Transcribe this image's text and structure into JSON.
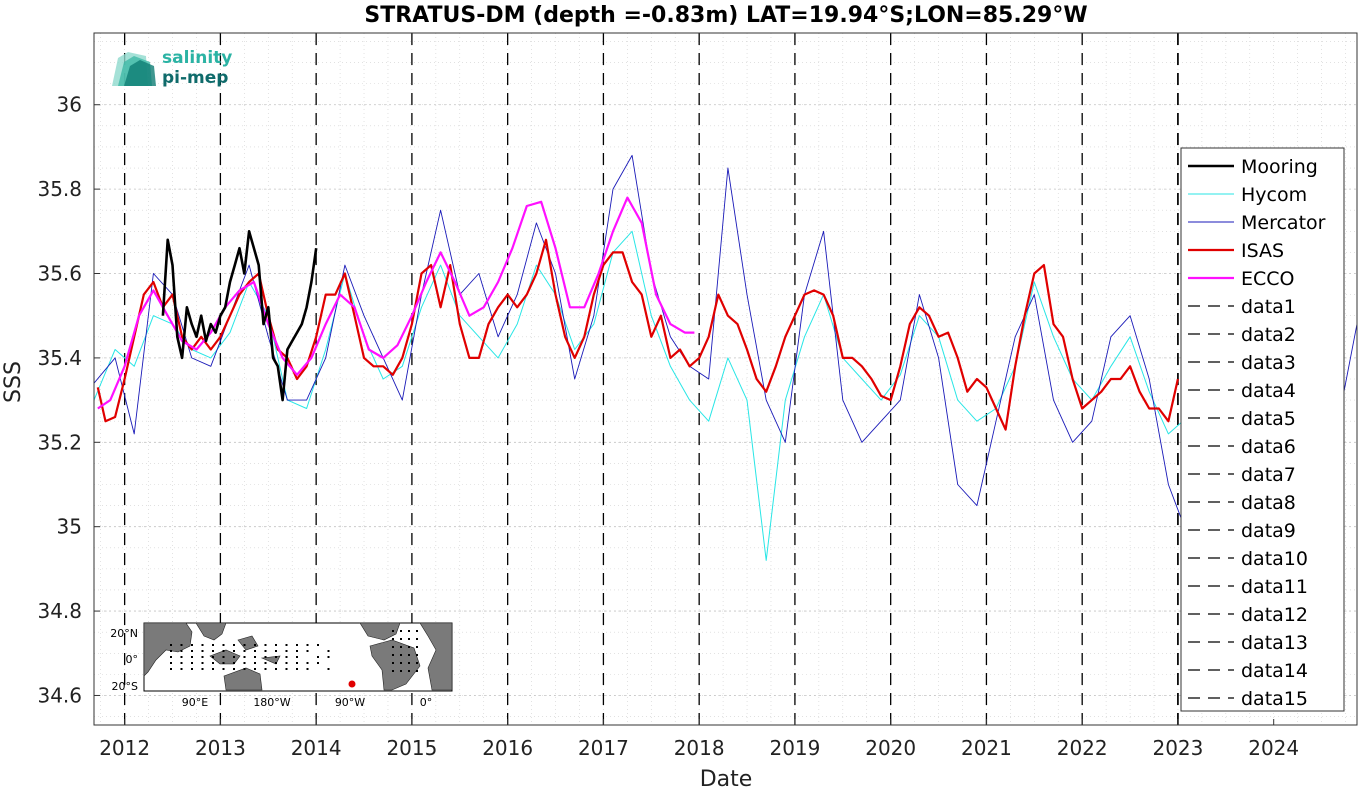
{
  "chart_data": {
    "type": "line",
    "title": "STRATUS-DM (depth =-0.83m) LAT=19.94°S;LON=85.29°W",
    "xlabel": "Date",
    "ylabel": "SSS",
    "xlim": [
      2011.68,
      2024.87
    ],
    "ylim": [
      34.53,
      36.17
    ],
    "x_ticks": [
      "2012",
      "2013",
      "2014",
      "2015",
      "2016",
      "2017",
      "2018",
      "2019",
      "2020",
      "2021",
      "2022",
      "2023",
      "2024"
    ],
    "y_ticks": [
      "34.6",
      "34.8",
      "35",
      "35.2",
      "35.4",
      "35.6",
      "35.8",
      "36"
    ],
    "grid": true,
    "legend_position": "right",
    "series": [
      {
        "name": "Mooring",
        "color": "#000000",
        "x": [
          2012.4,
          2012.45,
          2012.5,
          2012.55,
          2012.6,
          2012.65,
          2012.7,
          2012.75,
          2012.8,
          2012.85,
          2012.9,
          2012.95,
          2013.0,
          2013.05,
          2013.1,
          2013.15,
          2013.2,
          2013.25,
          2013.3,
          2013.35,
          2013.4,
          2013.45,
          2013.5,
          2013.55,
          2013.6,
          2013.65,
          2013.7,
          2013.75,
          2013.8,
          2013.85,
          2013.9,
          2013.95,
          2014.0
        ],
        "y": [
          35.5,
          35.68,
          35.62,
          35.45,
          35.4,
          35.52,
          35.48,
          35.45,
          35.5,
          35.44,
          35.48,
          35.46,
          35.5,
          35.52,
          35.58,
          35.62,
          35.66,
          35.6,
          35.7,
          35.66,
          35.62,
          35.48,
          35.52,
          35.4,
          35.38,
          35.3,
          35.42,
          35.44,
          35.46,
          35.48,
          35.52,
          35.58,
          35.66
        ]
      },
      {
        "name": "Hycom",
        "color": "#28e6e6",
        "x": [
          2011.68,
          2011.9,
          2012.1,
          2012.3,
          2012.5,
          2012.7,
          2012.9,
          2013.1,
          2013.3,
          2013.5,
          2013.7,
          2013.9,
          2014.1,
          2014.3,
          2014.5,
          2014.7,
          2014.9,
          2015.1,
          2015.3,
          2015.5,
          2015.7,
          2015.9,
          2016.1,
          2016.3,
          2016.5,
          2016.7,
          2016.9,
          2017.1,
          2017.3,
          2017.5,
          2017.7,
          2017.9,
          2018.1,
          2018.3,
          2018.5,
          2018.7,
          2018.9,
          2019.1,
          2019.3,
          2019.5,
          2019.7,
          2019.9,
          2020.1,
          2020.3,
          2020.5,
          2020.7,
          2020.9,
          2021.1,
          2021.3,
          2021.5,
          2021.7,
          2021.9,
          2022.1,
          2022.3,
          2022.5,
          2022.7,
          2022.9,
          2023.05
        ],
        "y": [
          35.3,
          35.42,
          35.38,
          35.5,
          35.48,
          35.42,
          35.4,
          35.46,
          35.58,
          35.5,
          35.3,
          35.28,
          35.42,
          35.6,
          35.45,
          35.35,
          35.38,
          35.52,
          35.62,
          35.5,
          35.45,
          35.4,
          35.48,
          35.62,
          35.55,
          35.42,
          35.48,
          35.65,
          35.7,
          35.5,
          35.38,
          35.3,
          35.25,
          35.4,
          35.3,
          34.92,
          35.3,
          35.45,
          35.55,
          35.4,
          35.35,
          35.3,
          35.36,
          35.5,
          35.45,
          35.3,
          35.25,
          35.28,
          35.38,
          35.58,
          35.45,
          35.35,
          35.3,
          35.38,
          35.45,
          35.32,
          35.22,
          35.25
        ]
      },
      {
        "name": "Mercator",
        "color": "#1a1ab8",
        "x": [
          2011.68,
          2011.9,
          2012.1,
          2012.3,
          2012.5,
          2012.7,
          2012.9,
          2013.1,
          2013.3,
          2013.5,
          2013.7,
          2013.9,
          2014.1,
          2014.3,
          2014.5,
          2014.7,
          2014.9,
          2015.1,
          2015.3,
          2015.5,
          2015.7,
          2015.9,
          2016.1,
          2016.3,
          2016.5,
          2016.7,
          2016.9,
          2017.1,
          2017.3,
          2017.5,
          2017.7,
          2017.9,
          2018.1,
          2018.3,
          2018.5,
          2018.7,
          2018.9,
          2019.1,
          2019.3,
          2019.5,
          2019.7,
          2019.9,
          2020.1,
          2020.3,
          2020.5,
          2020.7,
          2020.9,
          2021.1,
          2021.3,
          2021.5,
          2021.7,
          2021.9,
          2022.1,
          2022.3,
          2022.5,
          2022.7,
          2022.9,
          2023.1,
          2023.3,
          2023.5,
          2023.7,
          2023.9,
          2024.1,
          2024.3,
          2024.5,
          2024.7,
          2024.87
        ],
        "y": [
          35.34,
          35.4,
          35.22,
          35.6,
          35.55,
          35.4,
          35.38,
          35.5,
          35.62,
          35.45,
          35.3,
          35.3,
          35.4,
          35.62,
          35.5,
          35.4,
          35.3,
          35.55,
          35.75,
          35.55,
          35.6,
          35.45,
          35.55,
          35.72,
          35.6,
          35.35,
          35.5,
          35.8,
          35.88,
          35.6,
          35.45,
          35.38,
          35.35,
          35.85,
          35.55,
          35.3,
          35.2,
          35.55,
          35.7,
          35.3,
          35.2,
          35.25,
          35.3,
          35.55,
          35.4,
          35.1,
          35.05,
          35.25,
          35.45,
          35.55,
          35.3,
          35.2,
          35.25,
          35.45,
          35.5,
          35.35,
          35.1,
          34.98,
          35.1,
          35.2,
          35.3,
          35.4,
          35.25,
          35.35,
          35.45,
          35.28,
          35.48
        ]
      },
      {
        "name": "ISAS",
        "color": "#e00000",
        "x": [
          2011.72,
          2011.8,
          2011.9,
          2012.0,
          2012.1,
          2012.2,
          2012.3,
          2012.4,
          2012.5,
          2012.6,
          2012.7,
          2012.8,
          2012.9,
          2013.0,
          2013.1,
          2013.2,
          2013.3,
          2013.4,
          2013.5,
          2013.6,
          2013.7,
          2013.8,
          2013.9,
          2014.0,
          2014.1,
          2014.2,
          2014.3,
          2014.4,
          2014.5,
          2014.6,
          2014.7,
          2014.8,
          2014.9,
          2015.0,
          2015.1,
          2015.2,
          2015.3,
          2015.4,
          2015.5,
          2015.6,
          2015.7,
          2015.8,
          2015.9,
          2016.0,
          2016.1,
          2016.2,
          2016.3,
          2016.4,
          2016.5,
          2016.6,
          2016.7,
          2016.8,
          2016.9,
          2017.0,
          2017.1,
          2017.2,
          2017.3,
          2017.4,
          2017.5,
          2017.6,
          2017.7,
          2017.8,
          2017.9,
          2018.0,
          2018.1,
          2018.2,
          2018.3,
          2018.4,
          2018.5,
          2018.6,
          2018.7,
          2018.8,
          2018.9,
          2019.0,
          2019.1,
          2019.2,
          2019.3,
          2019.4,
          2019.5,
          2019.6,
          2019.7,
          2019.8,
          2019.9,
          2020.0,
          2020.1,
          2020.2,
          2020.3,
          2020.4,
          2020.5,
          2020.6,
          2020.7,
          2020.8,
          2020.9,
          2021.0,
          2021.1,
          2021.2,
          2021.3,
          2021.4,
          2021.5,
          2021.6,
          2021.7,
          2021.8,
          2021.9,
          2022.0,
          2022.1,
          2022.2,
          2022.3,
          2022.4,
          2022.5,
          2022.6,
          2022.7,
          2022.8,
          2022.9,
          2023.0
        ],
        "y": [
          35.33,
          35.25,
          35.26,
          35.35,
          35.45,
          35.55,
          35.58,
          35.52,
          35.55,
          35.45,
          35.42,
          35.45,
          35.42,
          35.45,
          35.5,
          35.55,
          35.58,
          35.6,
          35.5,
          35.42,
          35.4,
          35.35,
          35.38,
          35.45,
          35.55,
          35.55,
          35.6,
          35.5,
          35.4,
          35.38,
          35.38,
          35.36,
          35.4,
          35.48,
          35.6,
          35.62,
          35.52,
          35.62,
          35.48,
          35.4,
          35.4,
          35.48,
          35.52,
          35.55,
          35.52,
          35.55,
          35.6,
          35.68,
          35.55,
          35.45,
          35.4,
          35.45,
          35.55,
          35.62,
          35.65,
          35.65,
          35.58,
          35.55,
          35.45,
          35.5,
          35.4,
          35.42,
          35.38,
          35.4,
          35.45,
          35.55,
          35.5,
          35.48,
          35.42,
          35.35,
          35.32,
          35.38,
          35.45,
          35.5,
          35.55,
          35.56,
          35.55,
          35.5,
          35.4,
          35.4,
          35.38,
          35.35,
          35.31,
          35.3,
          35.38,
          35.48,
          35.52,
          35.5,
          35.45,
          35.46,
          35.4,
          35.32,
          35.35,
          35.33,
          35.28,
          35.23,
          35.38,
          35.5,
          35.6,
          35.62,
          35.48,
          35.45,
          35.35,
          35.28,
          35.3,
          35.32,
          35.35,
          35.35,
          35.38,
          35.32,
          35.28,
          35.28,
          35.25,
          35.35
        ]
      },
      {
        "name": "ECCO",
        "color": "#ff10ff",
        "x": [
          2011.72,
          2011.85,
          2012.0,
          2012.15,
          2012.3,
          2012.45,
          2012.6,
          2012.75,
          2012.9,
          2013.05,
          2013.2,
          2013.35,
          2013.5,
          2013.65,
          2013.8,
          2013.95,
          2014.1,
          2014.25,
          2014.4,
          2014.55,
          2014.7,
          2014.85,
          2015.0,
          2015.15,
          2015.3,
          2015.45,
          2015.6,
          2015.75,
          2015.9,
          2016.05,
          2016.2,
          2016.35,
          2016.5,
          2016.65,
          2016.8,
          2016.95,
          2017.1,
          2017.25,
          2017.4,
          2017.55,
          2017.7,
          2017.85,
          2017.95
        ],
        "y": [
          35.28,
          35.3,
          35.38,
          35.5,
          35.56,
          35.5,
          35.44,
          35.42,
          35.46,
          35.52,
          35.56,
          35.58,
          35.48,
          35.4,
          35.36,
          35.4,
          35.48,
          35.55,
          35.52,
          35.42,
          35.4,
          35.43,
          35.5,
          35.58,
          35.65,
          35.58,
          35.5,
          35.52,
          35.58,
          35.66,
          35.76,
          35.77,
          35.66,
          35.52,
          35.52,
          35.6,
          35.7,
          35.78,
          35.72,
          35.55,
          35.48,
          35.46,
          35.46
        ]
      }
    ],
    "reference_lines": [
      {
        "name": "data1",
        "x": 2012.0
      },
      {
        "name": "data2",
        "x": 2013.0
      },
      {
        "name": "data3",
        "x": 2014.0
      },
      {
        "name": "data4",
        "x": 2015.0
      },
      {
        "name": "data5",
        "x": 2016.0
      },
      {
        "name": "data6",
        "x": 2017.0
      },
      {
        "name": "data7",
        "x": 2018.0
      },
      {
        "name": "data8",
        "x": 2019.0
      },
      {
        "name": "data9",
        "x": 2020.0
      },
      {
        "name": "data10",
        "x": 2021.0
      },
      {
        "name": "data11",
        "x": 2022.0
      },
      {
        "name": "data12",
        "x": 2023.0
      },
      {
        "name": "data13",
        "x": 2023.0
      },
      {
        "name": "data14",
        "x": 2023.0
      },
      {
        "name": "data15",
        "x": 2023.0
      }
    ]
  },
  "logo": {
    "line1": "salinity",
    "line2": "pi-mep",
    "color1": "#2bb3a4",
    "color2": "#0f6b6b"
  },
  "inset_map": {
    "lat_labels": [
      "20°N",
      "0°",
      "20°S"
    ],
    "lon_labels": [
      "90°E",
      "180°W",
      "90°W",
      "0°"
    ],
    "marker_color": "#e00000"
  }
}
